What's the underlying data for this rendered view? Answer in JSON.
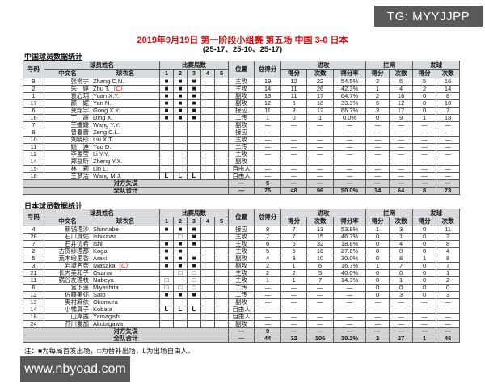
{
  "colors": {
    "title_red": "#cc1111",
    "captain_red": "#cc1111",
    "header_bg": "#d8dcdf",
    "total_bg": "#d2d2d2",
    "watermark_bg": "#595959"
  },
  "watermarks": {
    "tg": "TG: MYYJJPP",
    "site": "www.nbyoad.com"
  },
  "header": {
    "title": "2019年9月19日 第一阶段小组赛 第五场 中国 3-0 日本",
    "subtitle": "(25-17、25-10、25-17)"
  },
  "columns": {
    "number": "号码",
    "player_name_group": "球员姓名",
    "cn_name": "中文名",
    "jersey_name": "球衣名",
    "sets_group": "比赛局数",
    "set_numbers": [
      "1",
      "2",
      "3",
      "4",
      "5"
    ],
    "position": "位置",
    "total_points": "总得分",
    "attack_group": "进攻",
    "block_group": "拦网",
    "serve_group": "发球",
    "points": "得分",
    "attempts": "次数",
    "rate": "得分率"
  },
  "legend": {
    "starter": "■",
    "substitute": "□",
    "libero": "L"
  },
  "china": {
    "section_title": "中国球员数据统计",
    "rows": [
      {
        "no": "9",
        "cn": "张常宁",
        "jersey": "Zhang C.N.",
        "cap": "",
        "sets": [
          "■",
          "■",
          "■",
          "",
          ""
        ],
        "pos": "主攻",
        "stats": [
          "19",
          "12",
          "22",
          "54.5%",
          "2",
          "6",
          "5",
          "16"
        ]
      },
      {
        "no": "2",
        "cn": "朱　婷",
        "jersey": "Zhu T.",
        "cap": "（C）",
        "sets": [
          "■",
          "■",
          "■",
          "",
          ""
        ],
        "pos": "主攻",
        "stats": [
          "14",
          "11",
          "26",
          "42.3%",
          "1",
          "4",
          "2",
          "14"
        ]
      },
      {
        "no": "1",
        "cn": "袁心玥",
        "jersey": "Yuan X.Y.",
        "cap": "",
        "sets": [
          "■",
          "■",
          "■",
          "",
          ""
        ],
        "pos": "副攻",
        "stats": [
          "13",
          "11",
          "17",
          "64.7%",
          "2",
          "16",
          "0",
          "8"
        ]
      },
      {
        "no": "17",
        "cn": "颜　妮",
        "jersey": "Yan N.",
        "cap": "",
        "sets": [
          "■",
          "■",
          "■",
          "",
          ""
        ],
        "pos": "副攻",
        "stats": [
          "12",
          "6",
          "18",
          "33.3%",
          "6",
          "12",
          "0",
          "10"
        ]
      },
      {
        "no": "6",
        "cn": "龚翔宇",
        "jersey": "Gong X.Y.",
        "cap": "",
        "sets": [
          "■",
          "■",
          "■",
          "",
          ""
        ],
        "pos": "接应",
        "stats": [
          "11",
          "8",
          "12",
          "66.7%",
          "3",
          "17",
          "0",
          "7"
        ]
      },
      {
        "no": "16",
        "cn": "丁　霞",
        "jersey": "Ding X.",
        "cap": "",
        "sets": [
          "■",
          "■",
          "■",
          "",
          ""
        ],
        "pos": "二传",
        "stats": [
          "1",
          "0",
          "1",
          "0.0%",
          "0",
          "9",
          "1",
          "18"
        ]
      },
      {
        "no": "7",
        "cn": "王媛媛",
        "jersey": "Wang Y.Y.",
        "cap": "",
        "sets": [
          "",
          "",
          "",
          "",
          ""
        ],
        "pos": "副攻",
        "stats": [
          "—",
          "—",
          "—",
          "—",
          "—",
          "—",
          "—",
          "—"
        ]
      },
      {
        "no": "8",
        "cn": "曾春蕾",
        "jersey": "Zeng C.L.",
        "cap": "",
        "sets": [
          "",
          "",
          "",
          "",
          ""
        ],
        "pos": "接应",
        "stats": [
          "—",
          "—",
          "—",
          "—",
          "—",
          "—",
          "—",
          "—"
        ]
      },
      {
        "no": "10",
        "cn": "刘晓彤",
        "jersey": "Liu X.T.",
        "cap": "",
        "sets": [
          "",
          "",
          "",
          "",
          ""
        ],
        "pos": "主攻",
        "stats": [
          "—",
          "—",
          "—",
          "—",
          "—",
          "—",
          "—",
          "—"
        ]
      },
      {
        "no": "11",
        "cn": "姚　迪",
        "jersey": "Yao D.",
        "cap": "",
        "sets": [
          "",
          "",
          "",
          "",
          ""
        ],
        "pos": "二传",
        "stats": [
          "—",
          "—",
          "—",
          "—",
          "—",
          "—",
          "—",
          "—"
        ]
      },
      {
        "no": "12",
        "cn": "李盈莹",
        "jersey": "Li Y.Y.",
        "cap": "",
        "sets": [
          "",
          "",
          "",
          "",
          ""
        ],
        "pos": "主攻",
        "stats": [
          "—",
          "—",
          "—",
          "—",
          "—",
          "—",
          "—",
          "—"
        ]
      },
      {
        "no": "14",
        "cn": "郑益昕",
        "jersey": "Zheng Y.X.",
        "cap": "",
        "sets": [
          "",
          "",
          "",
          "",
          ""
        ],
        "pos": "副攻",
        "stats": [
          "—",
          "—",
          "—",
          "—",
          "—",
          "—",
          "—",
          "—"
        ]
      },
      {
        "no": "15",
        "cn": "林　莉",
        "jersey": "Lin L.",
        "cap": "",
        "sets": [
          "",
          "",
          "",
          "",
          ""
        ],
        "pos": "自由人",
        "stats": [
          "—",
          "—",
          "—",
          "—",
          "—",
          "—",
          "—",
          "—"
        ]
      },
      {
        "no": "18",
        "cn": "王梦洁",
        "jersey": "Wang M.J.",
        "cap": "",
        "sets": [
          "L",
          "L",
          "L",
          "",
          ""
        ],
        "pos": "自由人",
        "stats": [
          "—",
          "—",
          "—",
          "—",
          "—",
          "—",
          "—",
          "—"
        ]
      }
    ],
    "opp_error_label": "对方失误",
    "opp_error": [
      "—",
      "5",
      "—",
      "—",
      "—",
      "—",
      "—",
      "—",
      "—"
    ],
    "team_total_label": "全队合计",
    "team_total": [
      "—",
      "75",
      "48",
      "96",
      "50.0%",
      "14",
      "64",
      "8",
      "73"
    ]
  },
  "japan": {
    "section_title": "日本球员数据统计",
    "rows": [
      {
        "no": "4",
        "cn": "新锅理沙",
        "jersey": "Shinnabe",
        "cap": "",
        "sets": [
          "■",
          "■",
          "■",
          "",
          ""
        ],
        "pos": "接应",
        "stats": [
          "8",
          "7",
          "13",
          "53.8%",
          "1",
          "3",
          "0",
          "11"
        ]
      },
      {
        "no": "28",
        "cn": "石川真佑",
        "jersey": "Ishikawa",
        "cap": "",
        "sets": [
          "",
          "□",
          "■",
          "",
          ""
        ],
        "pos": "主攻",
        "stats": [
          "7",
          "7",
          "15",
          "46.7%",
          "0",
          "1",
          "0",
          "2"
        ]
      },
      {
        "no": "7",
        "cn": "石井优希",
        "jersey": "Ishii",
        "cap": "",
        "sets": [
          "■",
          "■",
          "■",
          "",
          ""
        ],
        "pos": "主攻",
        "stats": [
          "6",
          "6",
          "32",
          "18.8%",
          "0",
          "4",
          "0",
          "8"
        ]
      },
      {
        "no": "2",
        "cn": "古贺纱理那",
        "jersey": "Koga",
        "cap": "",
        "sets": [
          "■",
          "■",
          "",
          "",
          ""
        ],
        "pos": "主攻",
        "stats": [
          "5",
          "5",
          "18",
          "27.8%",
          "0",
          "0",
          "0",
          "4"
        ]
      },
      {
        "no": "5",
        "cn": "荒木绘里香",
        "jersey": "Araki",
        "cap": "",
        "sets": [
          "■",
          "■",
          "■",
          "",
          ""
        ],
        "pos": "副攻",
        "stats": [
          "4",
          "3",
          "10",
          "30.0%",
          "0",
          "8",
          "1",
          "8"
        ]
      },
      {
        "no": "3",
        "cn": "岩坂名奈",
        "jersey": "Iwasaka",
        "cap": "（C）",
        "sets": [
          "■",
          "■",
          "■",
          "",
          ""
        ],
        "pos": "副攻",
        "stats": [
          "2",
          "1",
          "6",
          "16.7%",
          "1",
          "7",
          "0",
          "7"
        ]
      },
      {
        "no": "21",
        "cn": "长内美和子",
        "jersey": "Osanai",
        "cap": "",
        "sets": [
          "",
          "□",
          "□",
          "",
          ""
        ],
        "pos": "主攻",
        "stats": [
          "2",
          "2",
          "5",
          "40.0%",
          "0",
          "0",
          "0",
          "1"
        ]
      },
      {
        "no": "11",
        "cn": "锅谷友理枝",
        "jersey": "Nabeya",
        "cap": "",
        "sets": [
          "□",
          "",
          "□",
          "",
          ""
        ],
        "pos": "主攻",
        "stats": [
          "1",
          "1",
          "7",
          "14.3%",
          "0",
          "1",
          "0",
          "2"
        ]
      },
      {
        "no": "6",
        "cn": "宫下遥",
        "jersey": "Miyashita",
        "cap": "",
        "sets": [
          "□",
          "□",
          "□",
          "",
          ""
        ],
        "pos": "二传",
        "stats": [
          "—",
          "—",
          "—",
          "—",
          "0",
          "0",
          "0",
          "0"
        ]
      },
      {
        "no": "12",
        "cn": "佐藤美弥",
        "jersey": "Sato",
        "cap": "",
        "sets": [
          "■",
          "■",
          "■",
          "",
          ""
        ],
        "pos": "二传",
        "stats": [
          "—",
          "—",
          "—",
          "—",
          "0",
          "3",
          "0",
          "3"
        ]
      },
      {
        "no": "13",
        "cn": "奥村麻依",
        "jersey": "Okumura",
        "cap": "",
        "sets": [
          "",
          "",
          "",
          "",
          ""
        ],
        "pos": "副攻",
        "stats": [
          "—",
          "—",
          "—",
          "—",
          "—",
          "—",
          "—",
          "—"
        ]
      },
      {
        "no": "14",
        "cn": "小幡真子",
        "jersey": "Kobata",
        "cap": "",
        "sets": [
          "L",
          "L",
          "L",
          "",
          ""
        ],
        "pos": "自由人",
        "stats": [
          "—",
          "—",
          "—",
          "—",
          "—",
          "—",
          "—",
          "—"
        ]
      },
      {
        "no": "18",
        "cn": "山岸茜",
        "jersey": "Yamagishi",
        "cap": "",
        "sets": [
          "",
          "",
          "",
          "",
          ""
        ],
        "pos": "自由人",
        "stats": [
          "—",
          "—",
          "—",
          "—",
          "—",
          "—",
          "—",
          "—"
        ]
      },
      {
        "no": "24",
        "cn": "芥川爱加",
        "jersey": "Akutagawa",
        "cap": "",
        "sets": [
          "",
          "",
          "",
          "",
          ""
        ],
        "pos": "副攻",
        "stats": [
          "—",
          "—",
          "—",
          "—",
          "—",
          "—",
          "—",
          "—"
        ]
      }
    ],
    "opp_error_label": "对方失误",
    "opp_error": [
      "—",
      "9",
      "—",
      "—",
      "—",
      "—",
      "—",
      "—",
      "—"
    ],
    "team_total_label": "全队合计",
    "team_total": [
      "—",
      "44",
      "32",
      "106",
      "30.2%",
      "2",
      "27",
      "1",
      "46"
    ]
  },
  "note": "注：■为每局首发出场，□为替补出场，L为出场自由人。"
}
